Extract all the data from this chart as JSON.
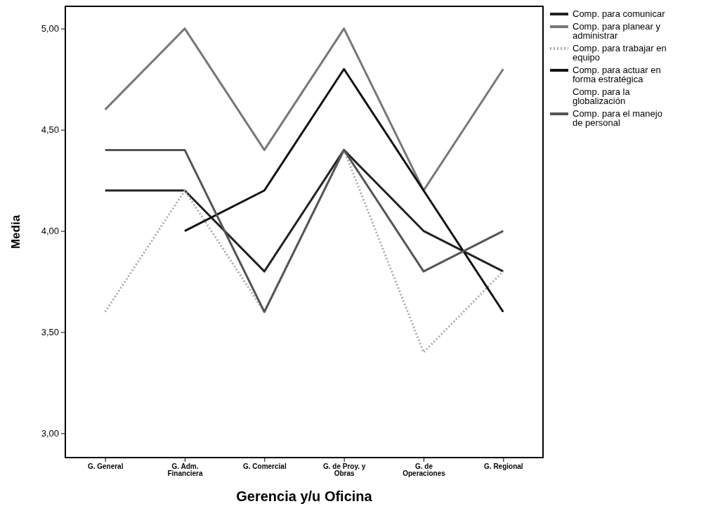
{
  "chart_data": {
    "type": "line",
    "xlabel": "Gerencia y/u Oficina",
    "ylabel": "Media",
    "categories": [
      "G. General",
      "G. Adm. Financiera",
      "G. Comercial",
      "G. de Proy. y Obras",
      "G. de Operaciones",
      "G. Regional"
    ],
    "ylim": [
      2.88,
      5.11
    ],
    "yticks": [
      {
        "value": 3,
        "label": "3,00"
      },
      {
        "value": 3.5,
        "label": "3,50"
      },
      {
        "value": 4,
        "label": "4,00"
      },
      {
        "value": 4.5,
        "label": "4,50"
      },
      {
        "value": 5,
        "label": "5,00"
      }
    ],
    "legend": "right",
    "marker": "none",
    "series": [
      {
        "name": "Comp. para comunicar",
        "color": "#222222",
        "values": [
          4.2,
          4.2,
          3.8,
          4.4,
          4.0,
          3.8
        ]
      },
      {
        "name": "Comp. para planear y administrar",
        "color": "#777777",
        "values": [
          4.6,
          5.0,
          4.4,
          5.0,
          4.2,
          4.8
        ]
      },
      {
        "name": "Comp. para trabajar en equipo",
        "color": "#aaaaaa",
        "line_style": "dotted",
        "values": [
          3.6,
          4.2,
          3.6,
          4.4,
          3.4,
          3.8
        ]
      },
      {
        "name": "Comp. para actuar en forma estratégica",
        "color": "#111111",
        "values": [
          null,
          4.0,
          4.2,
          4.8,
          4.2,
          3.6
        ]
      },
      {
        "name": "Comp. para la globalización",
        "values": [
          null,
          null,
          null,
          null,
          null,
          null
        ]
      },
      {
        "name": "Comp. para el manejo de personal",
        "color": "#555555",
        "values": [
          4.4,
          4.4,
          3.6,
          4.4,
          3.8,
          4.0
        ]
      }
    ]
  }
}
